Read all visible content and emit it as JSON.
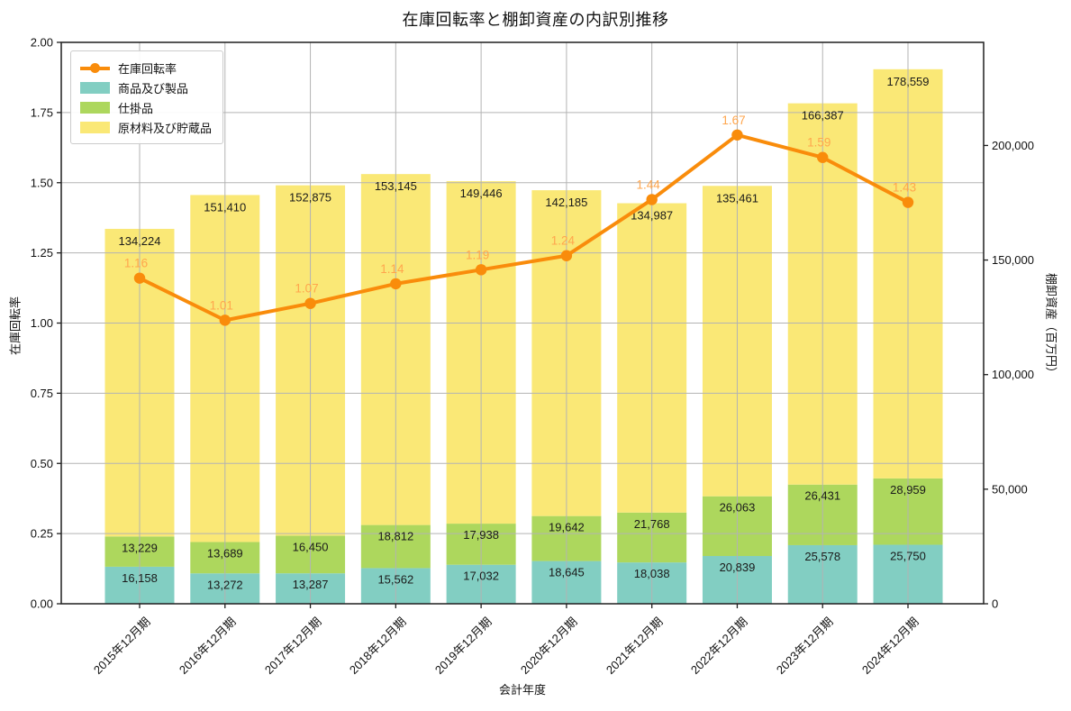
{
  "chart_data": {
    "type": "combo-stacked-bar-line",
    "title": "在庫回転率と棚卸資産の内訳別推移",
    "xlabel": "会計年度",
    "categories": [
      "2015年12月期",
      "2016年12月期",
      "2017年12月期",
      "2018年12月期",
      "2019年12月期",
      "2020年12月期",
      "2021年12月期",
      "2022年12月期",
      "2023年12月期",
      "2024年12月期"
    ],
    "left_axis": {
      "label": "在庫回転率",
      "min": 0.0,
      "max": 2.0,
      "tick_step": 0.25,
      "ticks": [
        0.0,
        0.25,
        0.5,
        0.75,
        1.0,
        1.25,
        1.5,
        1.75,
        2.0
      ]
    },
    "right_axis": {
      "label": "棚卸資産（百万円）",
      "min": 0,
      "display_max": 245000,
      "ticks": [
        0,
        50000,
        100000,
        150000,
        200000
      ]
    },
    "line": {
      "name": "在庫回転率",
      "color": "#F98C0B",
      "label_color": "#FFA64D",
      "values": [
        1.16,
        1.01,
        1.07,
        1.14,
        1.19,
        1.24,
        1.44,
        1.67,
        1.59,
        1.43
      ]
    },
    "bars": [
      {
        "name": "商品及び製品",
        "color": "#82CEC2",
        "values": [
          16158,
          13272,
          13287,
          15562,
          17032,
          18645,
          18038,
          20839,
          25578,
          25750
        ]
      },
      {
        "name": "仕掛品",
        "color": "#ADD75D",
        "values": [
          13229,
          13689,
          16450,
          18812,
          17938,
          19642,
          21768,
          26063,
          26431,
          28959
        ]
      },
      {
        "name": "原材料及び貯蔵品",
        "color": "#FAE876",
        "values": [
          134224,
          151410,
          152875,
          153145,
          149446,
          142185,
          134987,
          135461,
          166387,
          178559
        ]
      }
    ],
    "bar_top_labels": [
      "134,224",
      "151,410",
      "152,875",
      "153,145",
      "149,446",
      "142,185",
      "134,987",
      "135,461",
      "166,387",
      "178,559"
    ],
    "grid": true,
    "legend_position": "upper-left",
    "colors": {
      "grid": "#B3B3B3",
      "spine": "#1F1F1F",
      "bar_label_text": "#1a1a1a"
    }
  }
}
